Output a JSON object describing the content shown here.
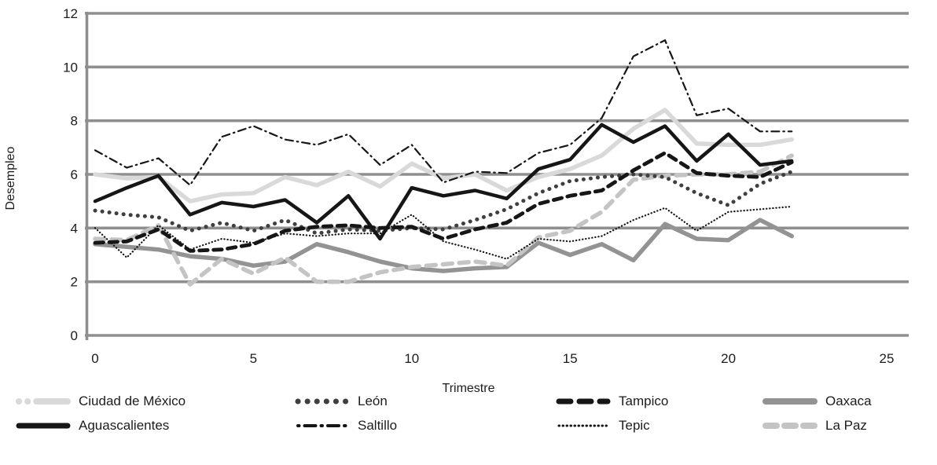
{
  "chart_data": {
    "type": "line",
    "xlabel": "Trimestre",
    "ylabel": "Desempleo",
    "xlim": [
      0,
      25
    ],
    "ylim": [
      0,
      12
    ],
    "xticks": [
      0,
      5,
      10,
      15,
      20,
      25
    ],
    "yticks": [
      0,
      2,
      4,
      6,
      8,
      10,
      12
    ],
    "grid": "horizontal",
    "legend_position": "bottom",
    "x": [
      0,
      1,
      2,
      3,
      4,
      5,
      6,
      7,
      8,
      9,
      10,
      11,
      12,
      13,
      14,
      15,
      16,
      17,
      18,
      19,
      20,
      21,
      22
    ],
    "series": [
      {
        "id": "cdmx",
        "name": "Ciudad de México",
        "color": "#d9d9d9",
        "values": [
          6.0,
          5.85,
          5.9,
          5.0,
          5.25,
          5.3,
          5.9,
          5.6,
          6.1,
          5.55,
          6.4,
          5.85,
          6.0,
          5.4,
          5.9,
          6.2,
          6.7,
          7.7,
          8.4,
          7.15,
          7.1,
          7.1,
          7.3
        ]
      },
      {
        "id": "aguascalientes",
        "name": "Aguascalientes",
        "color": "#161616",
        "values": [
          5.0,
          5.5,
          5.95,
          4.5,
          4.95,
          4.8,
          5.05,
          4.2,
          5.2,
          3.6,
          5.5,
          5.2,
          5.4,
          5.1,
          6.2,
          6.55,
          7.85,
          7.2,
          7.8,
          6.5,
          7.5,
          6.35,
          6.5
        ]
      },
      {
        "id": "leon",
        "name": "León",
        "color": "#3f3f3f",
        "values": [
          4.65,
          4.5,
          4.4,
          3.9,
          4.2,
          3.9,
          4.3,
          3.8,
          3.95,
          3.9,
          4.0,
          3.95,
          4.3,
          4.7,
          5.3,
          5.75,
          5.9,
          6.0,
          5.9,
          5.3,
          4.85,
          5.65,
          6.1
        ]
      },
      {
        "id": "saltillo",
        "name": "Saltillo",
        "color": "#161616",
        "values": [
          6.9,
          6.25,
          6.6,
          5.6,
          7.4,
          7.8,
          7.3,
          7.1,
          7.5,
          6.35,
          7.1,
          5.7,
          6.1,
          6.05,
          6.8,
          7.1,
          8.1,
          10.4,
          11.0,
          8.2,
          8.45,
          7.6,
          7.6
        ]
      },
      {
        "id": "tampico",
        "name": "Tampico",
        "color": "#161616",
        "values": [
          3.45,
          3.5,
          3.95,
          3.15,
          3.2,
          3.4,
          3.9,
          4.05,
          4.1,
          4.0,
          4.05,
          3.6,
          3.95,
          4.2,
          4.9,
          5.2,
          5.4,
          6.15,
          6.8,
          6.05,
          5.95,
          5.9,
          6.45
        ]
      },
      {
        "id": "tepic",
        "name": "Tepic",
        "color": "#161616",
        "values": [
          4.0,
          2.9,
          4.1,
          3.2,
          3.6,
          3.45,
          3.8,
          3.7,
          3.8,
          3.8,
          4.5,
          3.5,
          3.2,
          2.85,
          3.6,
          3.5,
          3.7,
          4.3,
          4.75,
          3.9,
          4.6,
          4.7,
          4.8
        ]
      },
      {
        "id": "oaxaca",
        "name": "Oaxaca",
        "color": "#939393",
        "values": [
          3.4,
          3.3,
          3.2,
          2.95,
          2.85,
          2.6,
          2.75,
          3.4,
          3.1,
          2.75,
          2.5,
          2.4,
          2.5,
          2.55,
          3.45,
          3.0,
          3.4,
          2.8,
          4.15,
          3.6,
          3.55,
          4.3,
          3.7
        ]
      },
      {
        "id": "lapaz",
        "name": "La Paz",
        "color": "#c4c4c4",
        "values": [
          3.6,
          3.55,
          4.1,
          1.9,
          2.85,
          2.3,
          2.9,
          2.0,
          2.0,
          2.35,
          2.55,
          2.65,
          2.75,
          2.6,
          3.65,
          3.9,
          4.6,
          5.8,
          5.95,
          6.0,
          6.0,
          6.1,
          6.7
        ]
      }
    ]
  }
}
